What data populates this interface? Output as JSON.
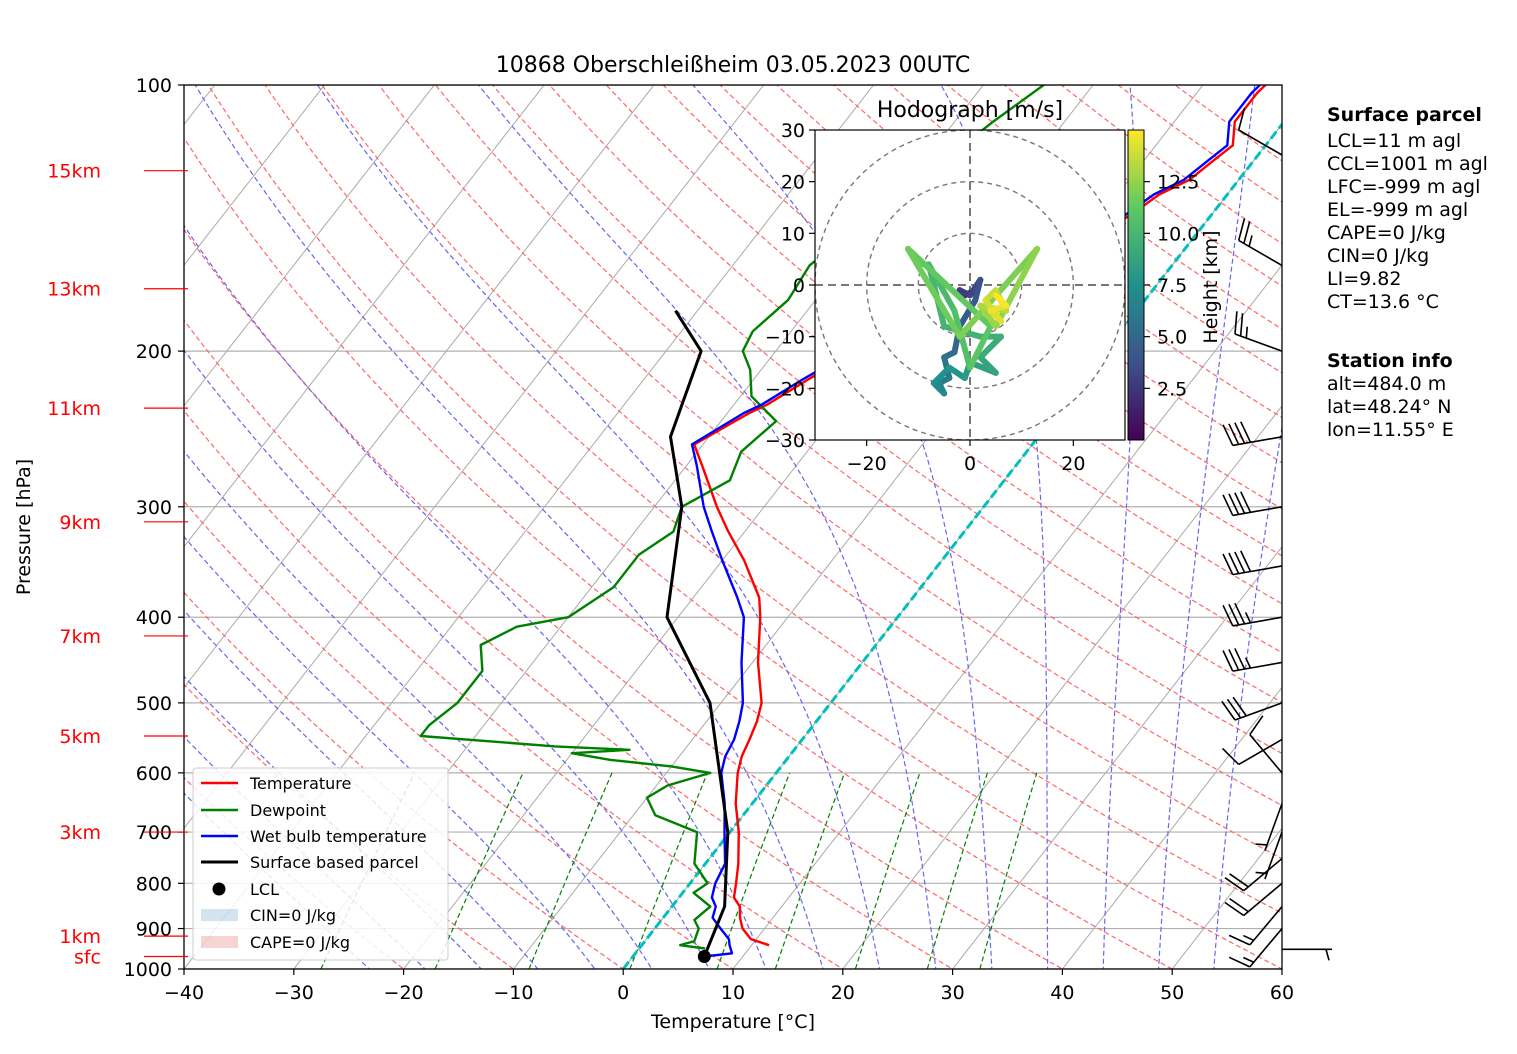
{
  "chart_data": [
    {
      "type": "line",
      "title": "10868 Oberschleißheim 03.05.2023 00UTC",
      "xlabel": "Temperature [°C]",
      "ylabel": "Pressure [hPa]",
      "xlim": [
        -40,
        60
      ],
      "ylim": [
        1000,
        100
      ],
      "y_scale": "log",
      "x_ticks": [
        -40,
        -30,
        -20,
        -10,
        0,
        10,
        20,
        30,
        40,
        50,
        60
      ],
      "p_ticks": [
        100,
        200,
        300,
        400,
        500,
        600,
        700,
        800,
        900,
        1000
      ],
      "grid": true,
      "height_labels": [
        {
          "label": "sfc",
          "p": 968
        },
        {
          "label": "1km",
          "p": 918
        },
        {
          "label": "3km",
          "p": 700
        },
        {
          "label": "5km",
          "p": 545
        },
        {
          "label": "7km",
          "p": 420
        },
        {
          "label": "9km",
          "p": 312
        },
        {
          "label": "11km",
          "p": 232
        },
        {
          "label": "13km",
          "p": 170
        },
        {
          "label": "15km",
          "p": 125
        }
      ],
      "legend": {
        "placement": "lower-left",
        "entries": [
          "Temperature",
          "Dewpoint",
          "Wet bulb temperature",
          "Surface based parcel",
          "LCL",
          "CIN=0 J/kg",
          "CAPE=0 J/kg"
        ]
      },
      "series": [
        {
          "name": "Temperature",
          "color": "#ff0000",
          "points": [
            [
              11.6,
              940
            ],
            [
              9.5,
              925
            ],
            [
              8,
              900
            ],
            [
              7,
              875
            ],
            [
              6.2,
              850
            ],
            [
              5,
              830
            ],
            [
              4.2,
              800
            ],
            [
              3,
              760
            ],
            [
              0.8,
              700
            ],
            [
              -1.5,
              650
            ],
            [
              -3.5,
              600
            ],
            [
              -4.3,
              575
            ],
            [
              -4.8,
              550
            ],
            [
              -5.4,
              525
            ],
            [
              -6.3,
              500
            ],
            [
              -9.5,
              450
            ],
            [
              -12.5,
              400
            ],
            [
              -14,
              380
            ],
            [
              -18,
              345
            ],
            [
              -21.5,
              320
            ],
            [
              -24.3,
              300
            ],
            [
              -28.5,
              270
            ],
            [
              -30.8,
              255
            ],
            [
              -28,
              235
            ],
            [
              -27,
              230
            ],
            [
              -25,
              215
            ],
            [
              -22.5,
              200
            ],
            [
              -21,
              190
            ],
            [
              -16.5,
              180
            ],
            [
              -13.5,
              170
            ],
            [
              -12,
              162
            ],
            [
              -11.2,
              155
            ],
            [
              -9.5,
              150
            ],
            [
              -7.3,
              140
            ],
            [
              -6.2,
              133
            ],
            [
              -4.5,
              128
            ],
            [
              -3.7,
              122
            ],
            [
              -3,
              117
            ],
            [
              -4.5,
              110
            ],
            [
              -4.5,
              102
            ],
            [
              -4,
              97
            ],
            [
              -3.5,
              92
            ]
          ]
        },
        {
          "name": "Dewpoint",
          "color": "#008000",
          "points": [
            [
              6,
              948
            ],
            [
              3.5,
              940
            ],
            [
              4.5,
              930
            ],
            [
              4,
              900
            ],
            [
              3,
              880
            ],
            [
              3.5,
              850
            ],
            [
              1,
              820
            ],
            [
              1.6,
              800
            ],
            [
              -1,
              760
            ],
            [
              -3,
              700
            ],
            [
              -8,
              670
            ],
            [
              -10,
              640
            ],
            [
              -9,
              620
            ],
            [
              -6,
              600
            ],
            [
              -10,
              590
            ],
            [
              -16,
              580
            ],
            [
              -20,
              570
            ],
            [
              -15,
              565
            ],
            [
              -22,
              560
            ],
            [
              -35,
              545
            ],
            [
              -35,
              530
            ],
            [
              -34,
              500
            ],
            [
              -34,
              460
            ],
            [
              -36,
              430
            ],
            [
              -34,
              410
            ],
            [
              -30,
              400
            ],
            [
              -28,
              370
            ],
            [
              -28,
              340
            ],
            [
              -26.5,
              320
            ],
            [
              -27.5,
              300
            ],
            [
              -25,
              280
            ],
            [
              -26,
              260
            ],
            [
              -25,
              240
            ],
            [
              -29,
              225
            ],
            [
              -31,
              210
            ],
            [
              -33,
              200
            ],
            [
              -33.5,
              190
            ],
            [
              -32.5,
              175
            ],
            [
              -33,
              160
            ],
            [
              -32,
              150
            ],
            [
              -31,
              140
            ],
            [
              -29.5,
              130
            ],
            [
              -28,
              120
            ],
            [
              -26.5,
              110
            ],
            [
              -24.5,
              100
            ],
            [
              -23,
              95
            ],
            [
              -22,
              92
            ]
          ]
        },
        {
          "name": "Wet bulb temperature",
          "color": "#0000ff",
          "points": [
            [
              6.5,
              968
            ],
            [
              8.8,
              960
            ],
            [
              8,
              940
            ],
            [
              7.5,
              925
            ],
            [
              6,
              900
            ],
            [
              4.5,
              875
            ],
            [
              4,
              850
            ],
            [
              3,
              830
            ],
            [
              2.3,
              800
            ],
            [
              1.8,
              760
            ],
            [
              -0.5,
              700
            ],
            [
              -2.5,
              650
            ],
            [
              -5,
              600
            ],
            [
              -5.8,
              575
            ],
            [
              -6.2,
              550
            ],
            [
              -7,
              525
            ],
            [
              -8,
              500
            ],
            [
              -11,
              450
            ],
            [
              -14,
              400
            ],
            [
              -16,
              380
            ],
            [
              -20,
              345
            ],
            [
              -23,
              320
            ],
            [
              -25.5,
              300
            ],
            [
              -29,
              270
            ],
            [
              -31,
              255
            ],
            [
              -28.5,
              235
            ],
            [
              -27.5,
              230
            ],
            [
              -25.5,
              215
            ],
            [
              -23,
              200
            ],
            [
              -21.5,
              190
            ],
            [
              -17,
              180
            ],
            [
              -14,
              170
            ],
            [
              -12.5,
              162
            ],
            [
              -11.5,
              155
            ],
            [
              -10,
              150
            ],
            [
              -7.8,
              140
            ],
            [
              -6.7,
              133
            ],
            [
              -5,
              128
            ],
            [
              -4.2,
              122
            ],
            [
              -3.5,
              117
            ],
            [
              -5,
              110
            ],
            [
              -5,
              102
            ],
            [
              -4.5,
              97
            ],
            [
              -4,
              92
            ]
          ]
        },
        {
          "name": "Surface based parcel",
          "color": "#000000",
          "points": [
            [
              6.5,
              968
            ],
            [
              4.8,
              850
            ],
            [
              -0.2,
              700
            ],
            [
              -11,
              500
            ],
            [
              -21,
              400
            ],
            [
              -27.5,
              300
            ],
            [
              -33.5,
              250
            ],
            [
              -36.8,
              200
            ],
            [
              -42,
              180
            ]
          ]
        }
      ],
      "lcl": {
        "t": 6.5,
        "p": 968
      },
      "cin": 0,
      "cape": 0,
      "wind_barbs": [
        {
          "p": 120,
          "dir": 300,
          "speed": 10
        },
        {
          "p": 160,
          "dir": 300,
          "speed": 25
        },
        {
          "p": 200,
          "dir": 290,
          "speed": 25
        },
        {
          "p": 250,
          "dir": 260,
          "speed": 40
        },
        {
          "p": 300,
          "dir": 260,
          "speed": 40
        },
        {
          "p": 350,
          "dir": 260,
          "speed": 40
        },
        {
          "p": 400,
          "dir": 260,
          "speed": 35
        },
        {
          "p": 450,
          "dir": 260,
          "speed": 35
        },
        {
          "p": 500,
          "dir": 250,
          "speed": 30
        },
        {
          "p": 550,
          "dir": 240,
          "speed": 10
        },
        {
          "p": 600,
          "dir": 320,
          "speed": 10
        },
        {
          "p": 650,
          "dir": 200,
          "speed": 5
        },
        {
          "p": 700,
          "dir": 200,
          "speed": 5
        },
        {
          "p": 750,
          "dir": 230,
          "speed": 20
        },
        {
          "p": 800,
          "dir": 230,
          "speed": 20
        },
        {
          "p": 850,
          "dir": 220,
          "speed": 15
        },
        {
          "p": 900,
          "dir": 220,
          "speed": 15
        },
        {
          "p": 950,
          "dir": 90,
          "speed": 5
        }
      ]
    },
    {
      "type": "line",
      "title": "Hodograph [m/s]",
      "xlim": [
        -30,
        30
      ],
      "ylim": [
        -30,
        30
      ],
      "x_ticks": [
        -20,
        0,
        20
      ],
      "y_ticks": [
        -30,
        -20,
        -10,
        0,
        10,
        20,
        30
      ],
      "rings": [
        10,
        20,
        30
      ],
      "colorbar": {
        "label": "Height [km]",
        "ticks": [
          2.5,
          5.0,
          7.5,
          10.0,
          12.5
        ],
        "range": [
          0,
          15
        ]
      },
      "points": [
        {
          "u": 2,
          "v": 1,
          "h": 0.3
        },
        {
          "u": 1,
          "v": -1,
          "h": 0.8
        },
        {
          "u": -1,
          "v": -2,
          "h": 1.5
        },
        {
          "u": -2,
          "v": -1,
          "h": 2.2
        },
        {
          "u": 0,
          "v": -2,
          "h": 2.8
        },
        {
          "u": 2,
          "v": 1,
          "h": 3.2
        },
        {
          "u": 1,
          "v": -3,
          "h": 3.8
        },
        {
          "u": -2,
          "v": -8,
          "h": 4.3
        },
        {
          "u": -3,
          "v": -13,
          "h": 5
        },
        {
          "u": -5,
          "v": -14,
          "h": 5.4
        },
        {
          "u": -4,
          "v": -18,
          "h": 5.8
        },
        {
          "u": -6,
          "v": -19,
          "h": 6.2
        },
        {
          "u": -5,
          "v": -21,
          "h": 6.6
        },
        {
          "u": -7,
          "v": -19,
          "h": 7
        },
        {
          "u": -4,
          "v": -16,
          "h": 7.5
        },
        {
          "u": -1,
          "v": -18,
          "h": 7.8
        },
        {
          "u": 0,
          "v": -15,
          "h": 8.1
        },
        {
          "u": 5,
          "v": -17,
          "h": 8.5
        },
        {
          "u": 2,
          "v": -14,
          "h": 8.8
        },
        {
          "u": 6,
          "v": -10,
          "h": 9.2
        },
        {
          "u": 2,
          "v": -10,
          "h": 9.4
        },
        {
          "u": -5,
          "v": -8,
          "h": 9.6
        },
        {
          "u": -8,
          "v": 4,
          "h": 9.8
        },
        {
          "u": -3,
          "v": -5,
          "h": 10.2
        },
        {
          "u": 0,
          "v": -16,
          "h": 10.6
        },
        {
          "u": 4,
          "v": -8,
          "h": 11
        },
        {
          "u": -12,
          "v": 7,
          "h": 11.3
        },
        {
          "u": -2,
          "v": -10,
          "h": 11.6
        },
        {
          "u": 13,
          "v": 7,
          "h": 12
        },
        {
          "u": 5,
          "v": -8,
          "h": 12.4
        },
        {
          "u": 2,
          "v": -4,
          "h": 12.8
        },
        {
          "u": 7,
          "v": -5,
          "h": 13.1
        },
        {
          "u": 5,
          "v": -1,
          "h": 13.4
        },
        {
          "u": 3,
          "v": -3,
          "h": 13.7
        },
        {
          "u": 6,
          "v": -7,
          "h": 14
        },
        {
          "u": 4,
          "v": -5,
          "h": 14.3
        },
        {
          "u": 7,
          "v": -4,
          "h": 14.6
        },
        {
          "u": 5,
          "v": -2,
          "h": 14.9
        }
      ]
    }
  ],
  "info": {
    "surface_title": "Surface parcel",
    "lines": [
      "LCL=11 m agl",
      "CCL=1001 m agl",
      "LFC=-999 m agl",
      "EL=-999 m agl",
      "CAPE=0 J/kg",
      "CIN=0 J/kg",
      "LI=9.82",
      "CT=13.6 °C"
    ],
    "station_title": "Station info",
    "station_lines": [
      "alt=484.0 m",
      "lat=48.24° N",
      "lon=11.55° E"
    ]
  },
  "colors": {
    "temperature": "#ff0000",
    "dewpoint": "#008000",
    "wetbulb": "#0000ff",
    "parcel": "#000000",
    "mixing": "#00bfbf",
    "dry_adiabat": "#ff6666",
    "moist_adiabat": "#6666ee",
    "mixing_ratio": "#008000",
    "isotherm": "#aaaaaa"
  }
}
